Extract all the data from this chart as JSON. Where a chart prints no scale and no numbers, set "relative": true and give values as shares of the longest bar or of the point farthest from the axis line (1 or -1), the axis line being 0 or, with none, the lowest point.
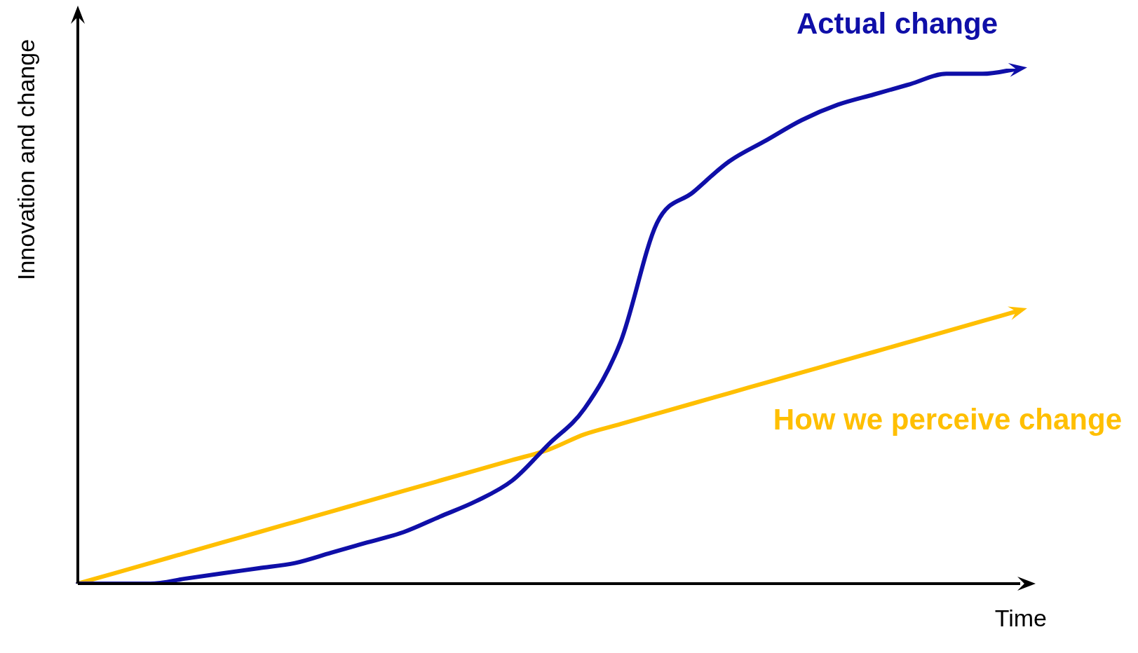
{
  "chart_data": {
    "type": "line",
    "relative": true,
    "xlabel": "Time",
    "ylabel": "Innovation and change",
    "marker": "none",
    "line_style": "solid",
    "categories": [
      null,
      null,
      null,
      null,
      null,
      null,
      null,
      null,
      null,
      null,
      null,
      null,
      null,
      null,
      null,
      null,
      null,
      null,
      null,
      null,
      null,
      null,
      null,
      null,
      null,
      null,
      null
    ],
    "series": [
      {
        "name": "Actual change",
        "color": "#0f0fa8",
        "values": [
          0,
          0,
          0,
          0.01,
          0.02,
          0.03,
          0.04,
          0.06,
          0.08,
          0.1,
          0.13,
          0.16,
          0.2,
          0.27,
          0.34,
          0.47,
          0.7,
          0.76,
          0.82,
          0.86,
          0.9,
          0.93,
          0.95,
          0.97,
          0.99,
          0.99,
          1
        ]
      },
      {
        "name": "How we perceive change",
        "color": "#ffbf00",
        "values": [
          0,
          0.02,
          0.04,
          0.06,
          0.08,
          0.1,
          0.12,
          0.14,
          0.16,
          0.18,
          0.2,
          0.22,
          0.24,
          0.26,
          0.29,
          0.31,
          0.33,
          0.35,
          0.37,
          0.39,
          0.41,
          0.43,
          0.45,
          0.47,
          0.49,
          0.51,
          0.53
        ]
      }
    ]
  }
}
